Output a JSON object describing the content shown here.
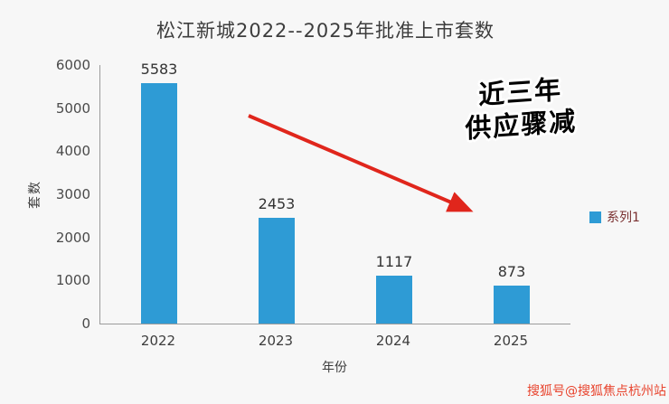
{
  "chart_data": {
    "type": "bar",
    "title": "松江新城2022--2025年批准上市套数",
    "categories": [
      "2022",
      "2023",
      "2024",
      "2025"
    ],
    "values": [
      5583,
      2453,
      1117,
      873
    ],
    "xlabel": "年份",
    "ylabel": "套数",
    "ylim": [
      0,
      6000
    ],
    "ytick_step": 1000,
    "bar_color": "#2E9BD5",
    "grid": false,
    "legend_position": "right",
    "legend": [
      {
        "label": "系列1",
        "color": "#2E9BD5"
      }
    ]
  },
  "annotation": {
    "line1": "近三年",
    "line2": "供应骤减"
  },
  "watermark": "搜狐号@搜狐焦点杭州站",
  "colors": {
    "bar": "#2E9BD5",
    "arrow": "#E0261C",
    "watermark": "#E8442E",
    "legend_text": "#7A3030",
    "title_text": "#3D3D3D"
  }
}
